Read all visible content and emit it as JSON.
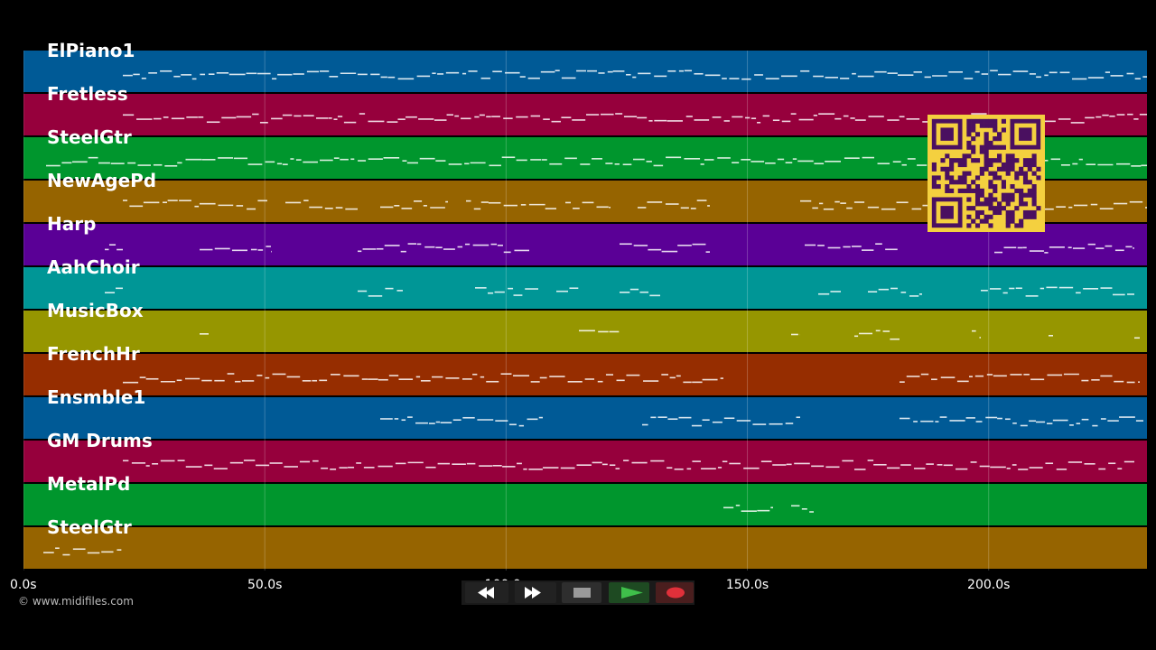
{
  "tracks": [
    {
      "name": "ElPiano1",
      "color": "#005a96"
    },
    {
      "name": "Fretless",
      "color": "#96003c"
    },
    {
      "name": "SteelGtr",
      "color": "#00962d"
    },
    {
      "name": "NewAgePd",
      "color": "#966400"
    },
    {
      "name": "Harp",
      "color": "#5a0096"
    },
    {
      "name": "AahChoir",
      "color": "#009696"
    },
    {
      "name": "MusicBox",
      "color": "#969600"
    },
    {
      "name": "FrenchHr",
      "color": "#962d00"
    },
    {
      "name": "Ensmble1",
      "color": "#005a96"
    },
    {
      "name": "GM Drums",
      "color": "#96003c"
    },
    {
      "name": "MetalPd",
      "color": "#00962d"
    },
    {
      "name": "SteelGtr",
      "color": "#966400"
    }
  ],
  "timeline": {
    "ticks": [
      {
        "label": "0.0s",
        "seconds": 0
      },
      {
        "label": "50.0s",
        "seconds": 50
      },
      {
        "label": "100.0s",
        "seconds": 100
      },
      {
        "label": "150.0s",
        "seconds": 150
      },
      {
        "label": "200.0s",
        "seconds": 200
      }
    ],
    "duration_seconds": 232.8
  },
  "copyright": "© www.midifiles.com",
  "transport": {
    "rewind_icon": "rewind-icon",
    "fast_forward_icon": "fast-forward-icon",
    "stop_icon": "stop-icon",
    "play_icon": "play-icon",
    "record_icon": "record-icon"
  },
  "qr_icon": "qr-code-icon"
}
